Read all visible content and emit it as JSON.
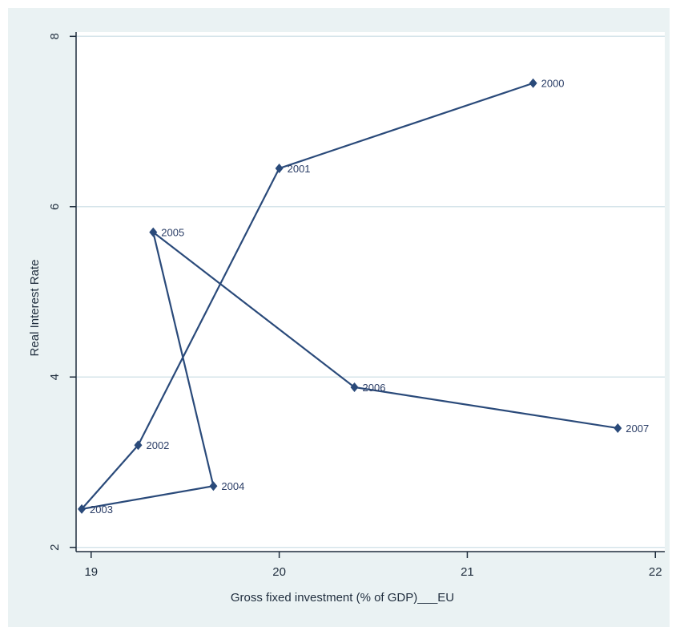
{
  "chart_data": {
    "type": "line",
    "xlabel": "Gross fixed investment (% of GDP)___EU",
    "ylabel": "Real Interest Rate",
    "xlim": [
      18.92,
      22.05
    ],
    "ylim": [
      1.95,
      8.05
    ],
    "x_ticks": [
      "19",
      "20",
      "21",
      "22"
    ],
    "y_ticks": [
      "2",
      "4",
      "6",
      "8"
    ],
    "grid": true,
    "series": [
      {
        "points": [
          {
            "x": 21.35,
            "y": 7.45,
            "label": "2000"
          },
          {
            "x": 20.0,
            "y": 6.45,
            "label": "2001"
          },
          {
            "x": 19.25,
            "y": 3.2,
            "label": "2002"
          },
          {
            "x": 18.95,
            "y": 2.45,
            "label": "2003"
          },
          {
            "x": 19.65,
            "y": 2.72,
            "label": "2004"
          },
          {
            "x": 19.33,
            "y": 5.7,
            "label": "2005"
          },
          {
            "x": 20.4,
            "y": 3.88,
            "label": "2006"
          },
          {
            "x": 21.8,
            "y": 3.4,
            "label": "2007"
          }
        ]
      }
    ],
    "colors": {
      "series": "#2a4a7a",
      "outer_background": "#eaf2f3",
      "plot_background": "#ffffff",
      "grid": "#d6e4ea"
    }
  }
}
